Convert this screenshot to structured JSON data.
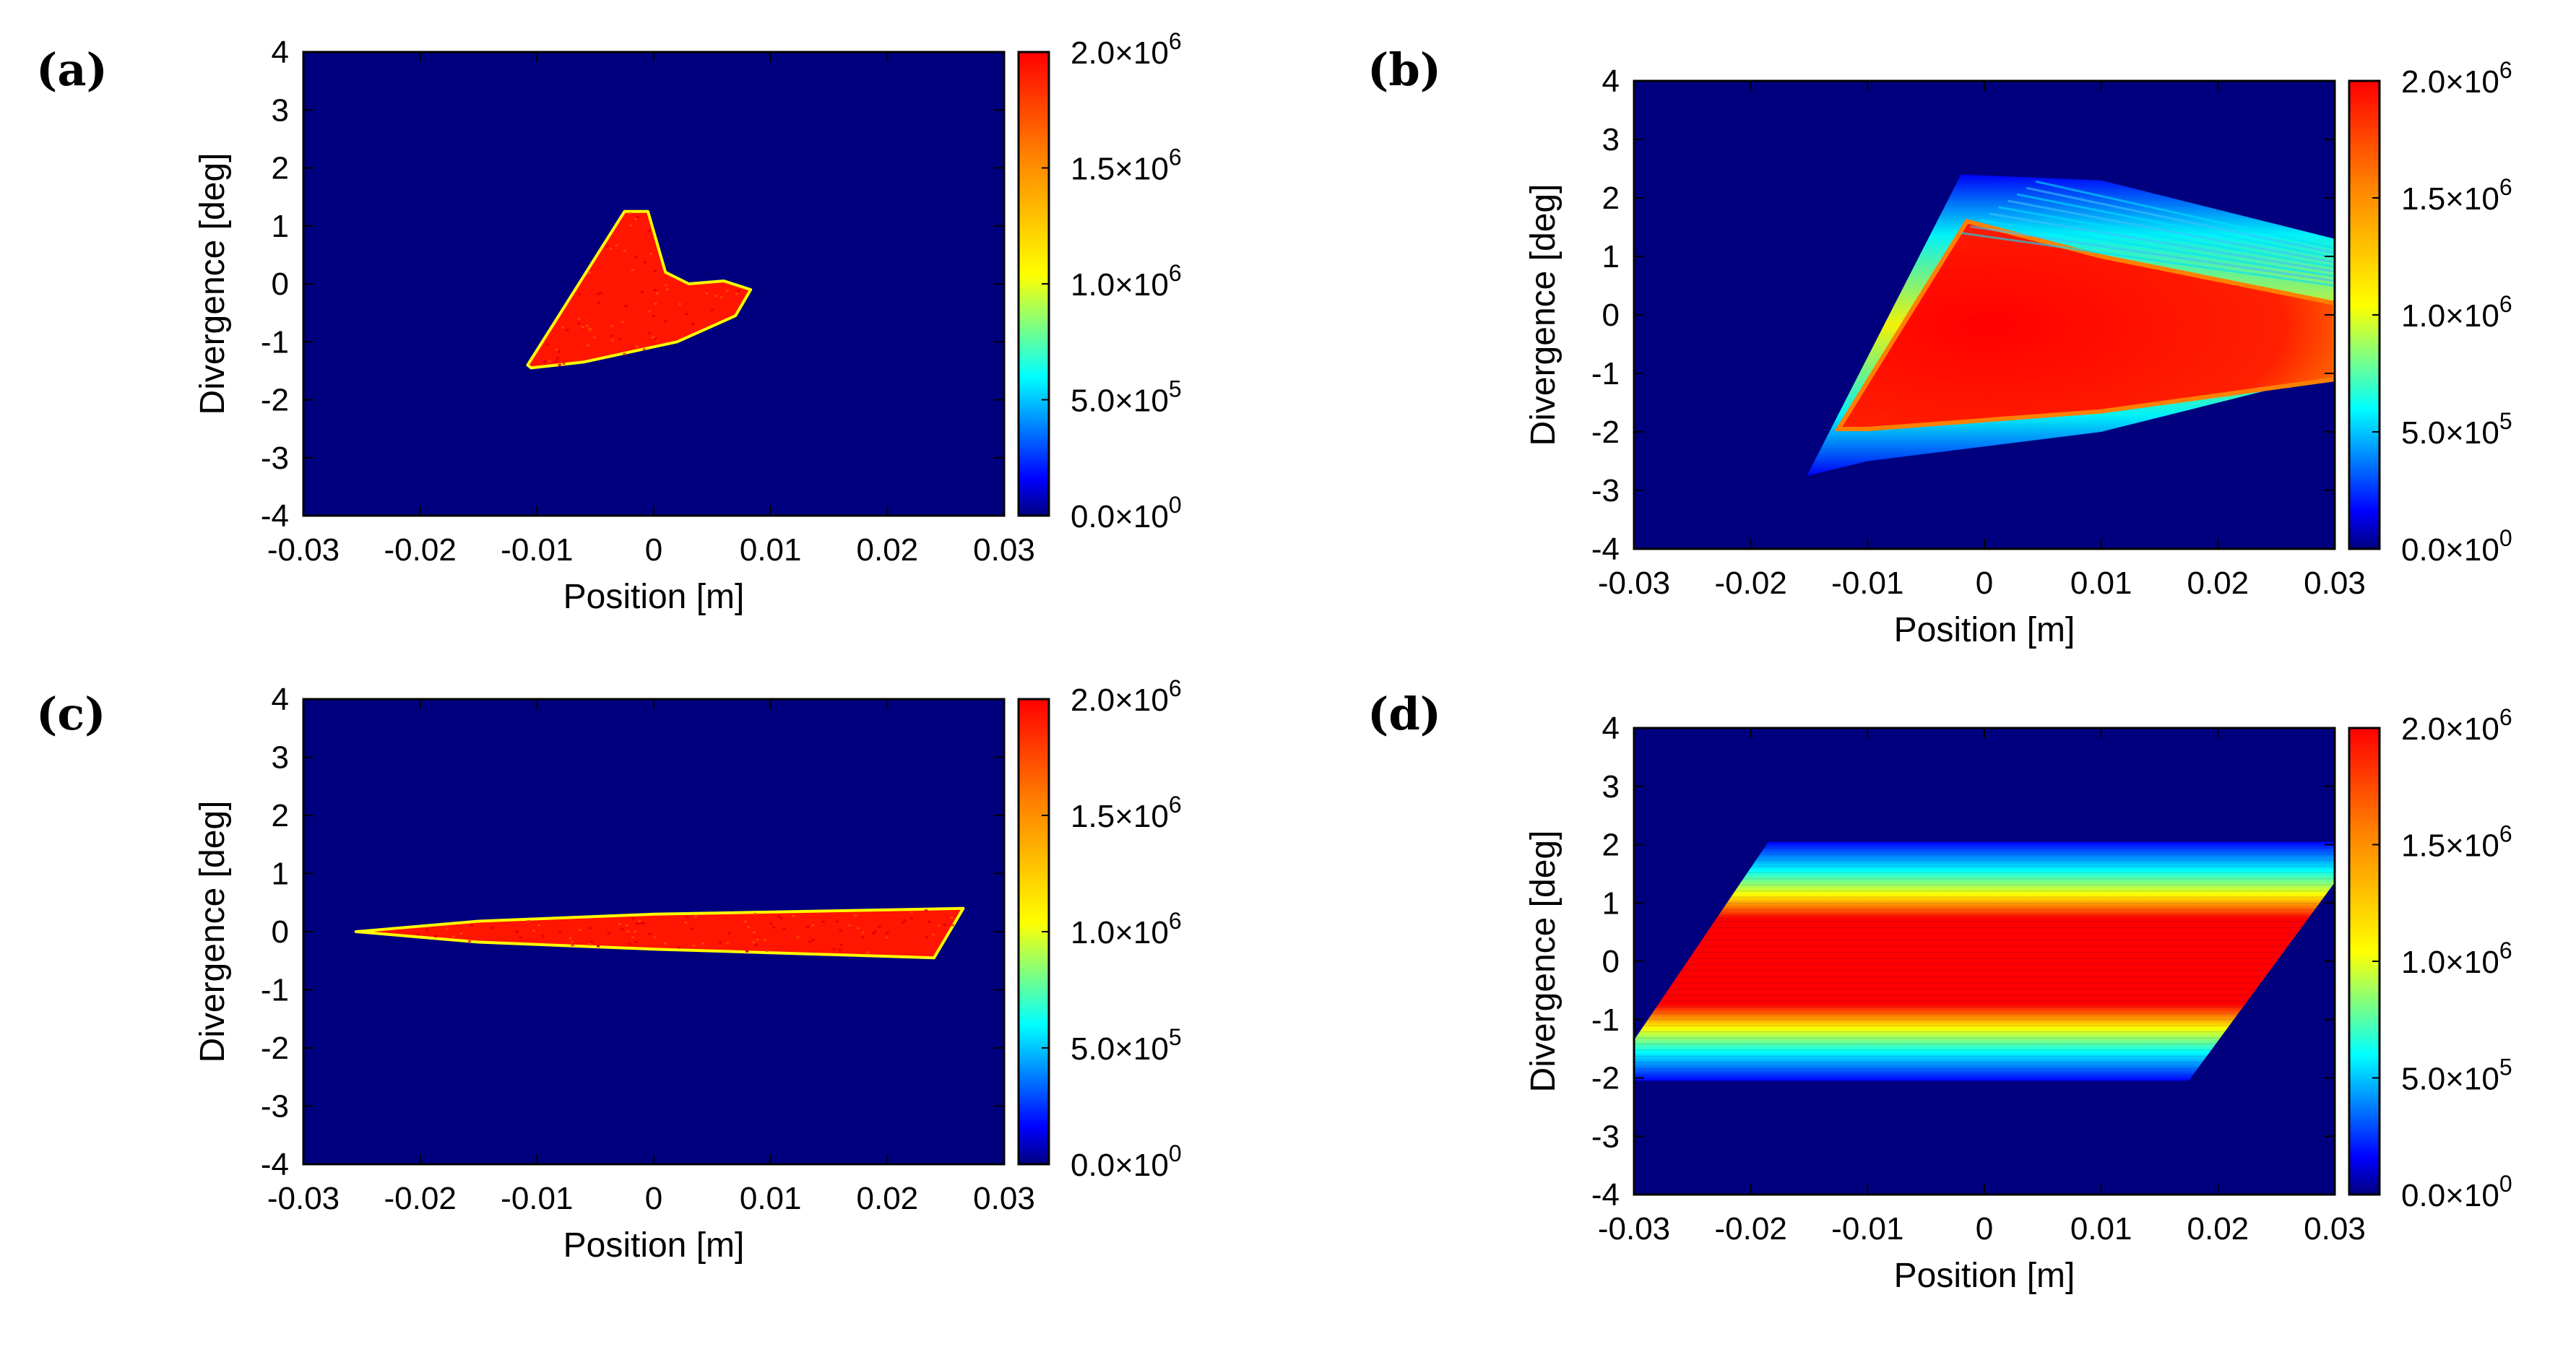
{
  "colors": {
    "background": "#00007f",
    "colormap": [
      "#00007f",
      "#0000ff",
      "#00ffff",
      "#ffff00",
      "#ff0000"
    ],
    "axis": "#000000"
  },
  "chart_data": [
    {
      "type": "heatmap",
      "panel": "(a)",
      "xlabel": "Position [m]",
      "ylabel": "Divergence [deg]",
      "xlim": [
        -0.03,
        0.03
      ],
      "ylim": [
        -4,
        4
      ],
      "x_ticks": [
        "-0.03",
        "-0.02",
        "-0.01",
        "0",
        "0.01",
        "0.02",
        "0.03"
      ],
      "y_ticks": [
        "-4",
        "-3",
        "-2",
        "-1",
        "0",
        "1",
        "2",
        "3",
        "4"
      ],
      "colorbar": {
        "min": 0,
        "max": 2000000,
        "ticks": [
          "0.0×10",
          "5.0×10",
          "1.0×10",
          "1.5×10",
          "2.0×10"
        ],
        "exponents": [
          "0",
          "5",
          "6",
          "6",
          "6"
        ]
      },
      "region": {
        "description": "triangular phase-space patch with serrated top edge and hook",
        "outline": [
          [
            -0.0108,
            -1.4
          ],
          [
            -0.0025,
            1.25
          ],
          [
            -0.0005,
            1.25
          ],
          [
            0.001,
            0.2
          ],
          [
            0.003,
            0.0
          ],
          [
            0.006,
            0.05
          ],
          [
            0.0083,
            -0.1
          ],
          [
            0.007,
            -0.55
          ],
          [
            0.002,
            -1.0
          ],
          [
            -0.006,
            -1.35
          ],
          [
            -0.0105,
            -1.45
          ]
        ],
        "value": 2000000
      }
    },
    {
      "type": "heatmap",
      "panel": "(b)",
      "xlabel": "Position [m]",
      "ylabel": "Divergence [deg]",
      "xlim": [
        -0.03,
        0.03
      ],
      "ylim": [
        -4,
        4
      ],
      "x_ticks": [
        "-0.03",
        "-0.02",
        "-0.01",
        "0",
        "0.01",
        "0.02",
        "0.03"
      ],
      "y_ticks": [
        "-4",
        "-3",
        "-2",
        "-1",
        "0",
        "1",
        "2",
        "3",
        "4"
      ],
      "colorbar": {
        "min": 0,
        "max": 2000000,
        "ticks": [
          "0.0×10",
          "5.0×10",
          "1.0×10",
          "1.5×10",
          "2.0×10"
        ],
        "exponents": [
          "0",
          "5",
          "6",
          "6",
          "6"
        ]
      },
      "region": {
        "description": "fan-shaped distribution with soft halo, opening toward +x",
        "halo_outline": [
          [
            -0.0152,
            -2.75
          ],
          [
            -0.002,
            2.4
          ],
          [
            0.01,
            2.3
          ],
          [
            0.03,
            1.3
          ],
          [
            0.03,
            -1.0
          ],
          [
            0.01,
            -2.0
          ],
          [
            -0.01,
            -2.5
          ]
        ],
        "core_outline": [
          [
            -0.0125,
            -1.95
          ],
          [
            -0.0015,
            1.6
          ],
          [
            0.01,
            1.0
          ],
          [
            0.03,
            0.2
          ],
          [
            0.03,
            -1.1
          ],
          [
            0.01,
            -1.65
          ],
          [
            -0.01,
            -1.95
          ]
        ],
        "value": 2000000
      }
    },
    {
      "type": "heatmap",
      "panel": "(c)",
      "xlabel": "Position [m]",
      "ylabel": "Divergence [deg]",
      "xlim": [
        -0.03,
        0.03
      ],
      "ylim": [
        -4,
        4
      ],
      "x_ticks": [
        "-0.03",
        "-0.02",
        "-0.01",
        "0",
        "0.01",
        "0.02",
        "0.03"
      ],
      "y_ticks": [
        "-4",
        "-3",
        "-2",
        "-1",
        "0",
        "1",
        "2",
        "3",
        "4"
      ],
      "colorbar": {
        "min": 0,
        "max": 2000000,
        "ticks": [
          "0.0×10",
          "5.0×10",
          "1.0×10",
          "1.5×10",
          "2.0×10"
        ],
        "exponents": [
          "0",
          "5",
          "6",
          "6",
          "6"
        ]
      },
      "region": {
        "description": "thin elongated sliver tilted slightly upward",
        "outline": [
          [
            -0.0255,
            0.0
          ],
          [
            -0.015,
            0.18
          ],
          [
            0.0,
            0.3
          ],
          [
            0.0265,
            0.4
          ],
          [
            0.024,
            -0.45
          ],
          [
            0.0,
            -0.3
          ],
          [
            -0.015,
            -0.18
          ]
        ],
        "value": 2000000
      }
    },
    {
      "type": "heatmap",
      "panel": "(d)",
      "xlabel": "Position [m]",
      "ylabel": "Divergence [deg]",
      "xlim": [
        -0.03,
        0.03
      ],
      "ylim": [
        -4,
        4
      ],
      "x_ticks": [
        "-0.03",
        "-0.02",
        "-0.01",
        "0",
        "0.01",
        "0.02",
        "0.03"
      ],
      "y_ticks": [
        "-4",
        "-3",
        "-2",
        "-1",
        "0",
        "1",
        "2",
        "3",
        "4"
      ],
      "colorbar": {
        "min": 0,
        "max": 2000000,
        "ticks": [
          "0.0×10",
          "5.0×10",
          "1.0×10",
          "1.5×10",
          "2.0×10"
        ],
        "exponents": [
          "0",
          "5",
          "6",
          "6",
          "6"
        ]
      },
      "region": {
        "description": "horizontal band sheared into a parallelogram, bright core between -1 and 1 deg",
        "outline": [
          [
            -0.03,
            -1.35
          ],
          [
            -0.0185,
            2.05
          ],
          [
            0.03,
            2.05
          ],
          [
            0.03,
            1.35
          ],
          [
            0.0175,
            -2.05
          ],
          [
            -0.03,
            -2.05
          ]
        ],
        "core_ylim": [
          -1.0,
          1.0
        ],
        "value": 2000000
      }
    }
  ]
}
